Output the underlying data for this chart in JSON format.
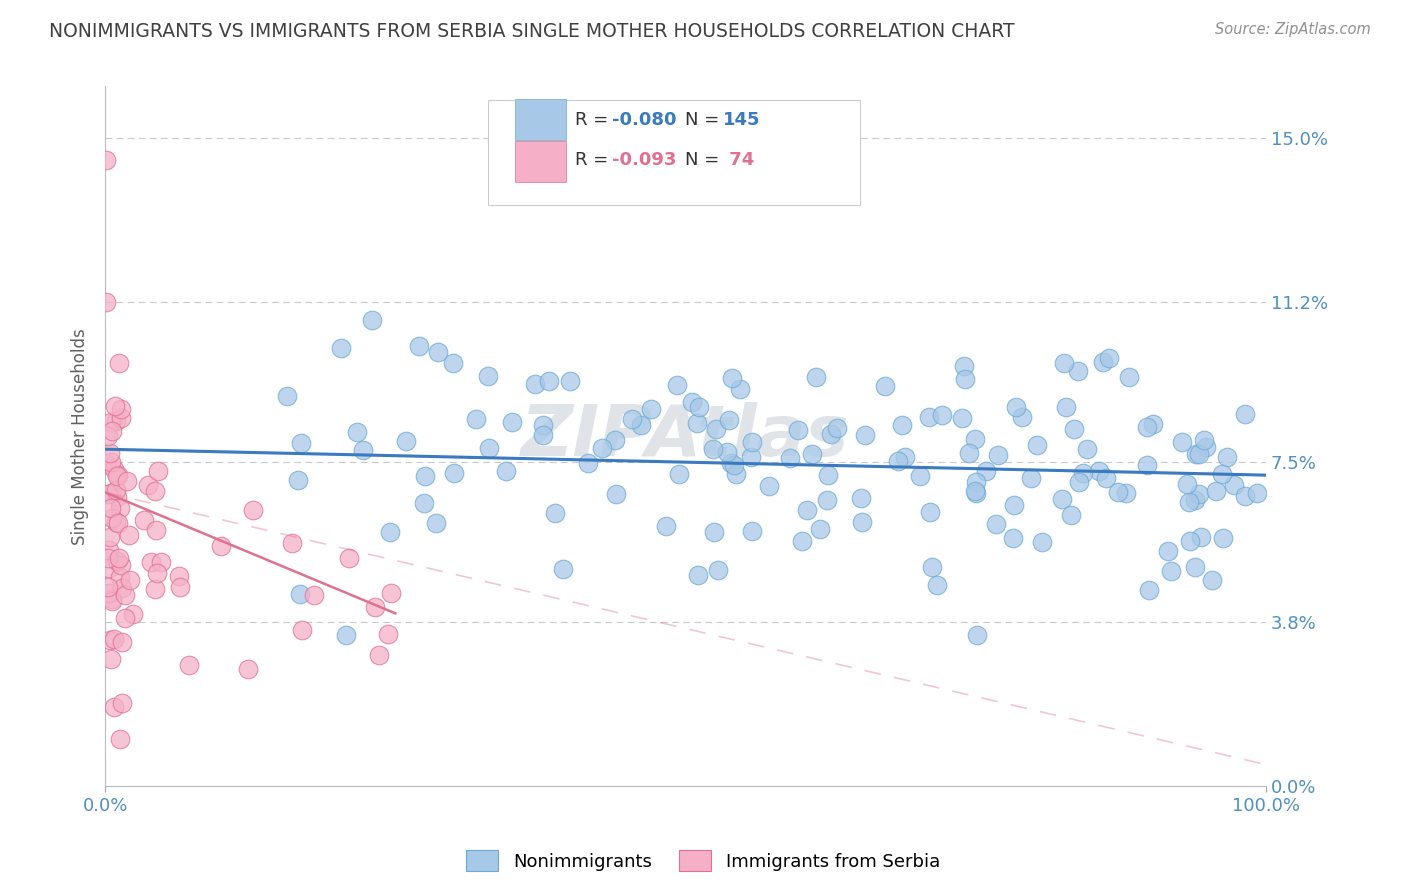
{
  "title": "NONIMMIGRANTS VS IMMIGRANTS FROM SERBIA SINGLE MOTHER HOUSEHOLDS CORRELATION CHART",
  "source": "Source: ZipAtlas.com",
  "ylabel": "Single Mother Households",
  "legend_R_blue": "-0.080",
  "legend_N_blue": "145",
  "legend_R_pink": "-0.093",
  "legend_N_pink": "74",
  "blue_color": "#a8c8e8",
  "blue_edge_color": "#6aaad4",
  "blue_line_color": "#3a7abf",
  "pink_color": "#f5b0c8",
  "pink_edge_color": "#e07090",
  "pink_line_color": "#e07090",
  "background_color": "#ffffff",
  "grid_color": "#c8c8d0",
  "title_color": "#404040",
  "source_color": "#909090",
  "axis_label_color": "#5090c0",
  "ylabel_color": "#606060",
  "legend_text_color": "#5090c0",
  "legend_box_color": "#3a7abf",
  "legend_pink_color": "#e07090",
  "ytick_values": [
    0.0,
    3.8,
    7.5,
    11.2,
    15.0
  ],
  "ytick_labels": [
    "0.0%",
    "3.8%",
    "7.5%",
    "11.2%",
    "15.0%"
  ],
  "xlim": [
    0,
    100
  ],
  "ylim": [
    0,
    16.2
  ],
  "blue_trend_x0": 0,
  "blue_trend_x1": 100,
  "blue_trend_y0": 7.8,
  "blue_trend_y1": 7.2,
  "pink_trend_x0": 0,
  "pink_trend_x1": 25,
  "pink_trend_y0": 6.8,
  "pink_trend_y1": 4.0,
  "pink_dash_x0": 0,
  "pink_dash_x1": 100,
  "pink_dash_y0": 6.8,
  "pink_dash_y1": 0.5,
  "watermark": "ZIPAtlas",
  "watermark_color": "#e0e4e8",
  "bottom_legend_labels": [
    "Nonimmigrants",
    "Immigrants from Serbia"
  ]
}
